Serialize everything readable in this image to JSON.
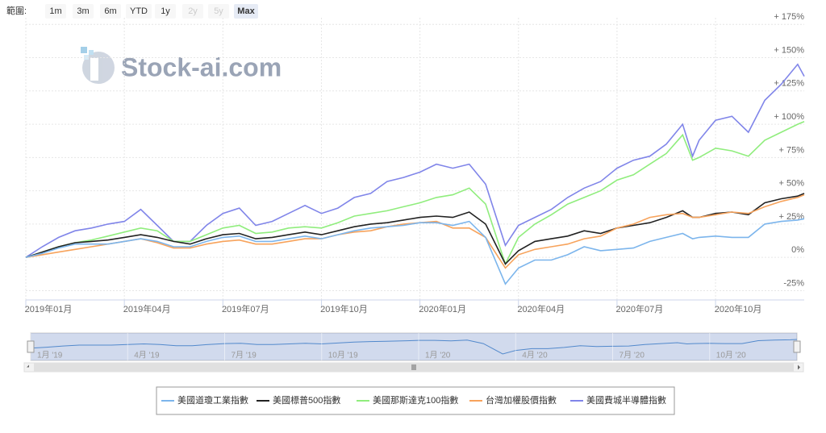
{
  "range_selector": {
    "label": "範圍:",
    "buttons": [
      "1m",
      "3m",
      "6m",
      "YTD",
      "1y",
      "2y",
      "5y",
      "Max"
    ]
  },
  "watermark": "Stock-ai.com",
  "navigator": {
    "labels": [
      "1月 '19",
      "4月 '19",
      "7月 '19",
      "10月 '19",
      "1月 '20",
      "4月 '20",
      "7月 '20",
      "10月 '20"
    ]
  },
  "chart_data": {
    "type": "line",
    "grid": true,
    "legend": "bottom",
    "x": [
      0,
      0.5,
      1,
      1.5,
      2,
      2.5,
      3,
      3.5,
      4,
      4.5,
      5,
      5.5,
      6,
      6.5,
      7,
      7.5,
      8,
      8.5,
      9,
      9.5,
      10,
      10.5,
      11,
      11.5,
      12,
      12.5,
      13,
      13.5,
      14,
      14.6,
      15,
      15.5,
      16,
      16.5,
      17,
      17.5,
      18,
      18.5,
      19,
      19.5,
      20,
      20.3,
      20.5,
      21,
      21.5,
      22,
      22.5,
      23,
      23.5,
      23.7
    ],
    "xlim": [
      0,
      23.7
    ],
    "xticks": [
      {
        "value": 0,
        "label": "2019年01月"
      },
      {
        "value": 3,
        "label": "2019年04月"
      },
      {
        "value": 6,
        "label": "2019年07月"
      },
      {
        "value": 9,
        "label": "2019年10月"
      },
      {
        "value": 12,
        "label": "2020年01月"
      },
      {
        "value": 15,
        "label": "2020年04月"
      },
      {
        "value": 18,
        "label": "2020年07月"
      },
      {
        "value": 21,
        "label": "2020年10月"
      }
    ],
    "ylim": [
      -32,
      180
    ],
    "yticks": [
      {
        "value": -25,
        "label": "-25%"
      },
      {
        "value": 0,
        "label": "0%"
      },
      {
        "value": 25,
        "label": "+ 25%"
      },
      {
        "value": 50,
        "label": "+ 50%"
      },
      {
        "value": 75,
        "label": "+ 75%"
      },
      {
        "value": 100,
        "label": "+ 100%"
      },
      {
        "value": 125,
        "label": "+ 125%"
      },
      {
        "value": 150,
        "label": "+ 150%"
      },
      {
        "value": 175,
        "label": "+ 175%"
      }
    ],
    "series": [
      {
        "name": "美國道瓊工業指數",
        "color": "#7cb5ec",
        "values": [
          0,
          3,
          7,
          10,
          10,
          10,
          12,
          14,
          12,
          8,
          8,
          12,
          15,
          16,
          12,
          12,
          14,
          16,
          14,
          17,
          20,
          22,
          23,
          24,
          26,
          26,
          24,
          27,
          15,
          -20,
          -8,
          -2,
          -2,
          2,
          8,
          5,
          6,
          7,
          12,
          15,
          18,
          14,
          15,
          16,
          15,
          15,
          25,
          27,
          28,
          29
        ]
      },
      {
        "name": "美國標普500指數",
        "color": "#222222",
        "values": [
          0,
          4,
          8,
          11,
          12,
          13,
          15,
          17,
          15,
          12,
          10,
          14,
          17,
          18,
          14,
          15,
          17,
          19,
          17,
          20,
          23,
          25,
          26,
          28,
          30,
          31,
          30,
          34,
          25,
          -5,
          5,
          12,
          14,
          16,
          20,
          18,
          22,
          24,
          26,
          30,
          35,
          30,
          30,
          33,
          34,
          32,
          41,
          44,
          46,
          48
        ]
      },
      {
        "name": "美國那斯達克100指數",
        "color": "#90ed7d",
        "values": [
          0,
          4,
          8,
          11,
          13,
          16,
          19,
          22,
          20,
          12,
          12,
          17,
          22,
          24,
          18,
          19,
          22,
          23,
          22,
          26,
          31,
          33,
          35,
          38,
          41,
          45,
          47,
          52,
          40,
          -5,
          15,
          25,
          32,
          40,
          45,
          50,
          58,
          62,
          70,
          78,
          92,
          73,
          75,
          82,
          80,
          76,
          88,
          94,
          100,
          102
        ]
      },
      {
        "name": "台灣加權股價指數",
        "color": "#f7a35c",
        "values": [
          0,
          2,
          4,
          6,
          8,
          10,
          12,
          14,
          11,
          7,
          7,
          10,
          12,
          13,
          10,
          10,
          12,
          14,
          14,
          17,
          19,
          20,
          23,
          25,
          26,
          27,
          22,
          22,
          15,
          -8,
          2,
          6,
          8,
          10,
          14,
          16,
          22,
          25,
          30,
          32,
          33,
          30,
          30,
          32,
          34,
          33,
          38,
          42,
          45,
          47
        ]
      },
      {
        "name": "美國費城半導體指數",
        "color": "#8085e9",
        "values": [
          0,
          8,
          15,
          20,
          22,
          25,
          27,
          36,
          24,
          12,
          12,
          24,
          33,
          37,
          24,
          27,
          33,
          39,
          33,
          37,
          45,
          48,
          57,
          60,
          64,
          70,
          67,
          70,
          55,
          9,
          24,
          30,
          36,
          45,
          52,
          57,
          67,
          73,
          76,
          85,
          100,
          76,
          88,
          103,
          106,
          94,
          118,
          130,
          145,
          136
        ]
      }
    ]
  }
}
